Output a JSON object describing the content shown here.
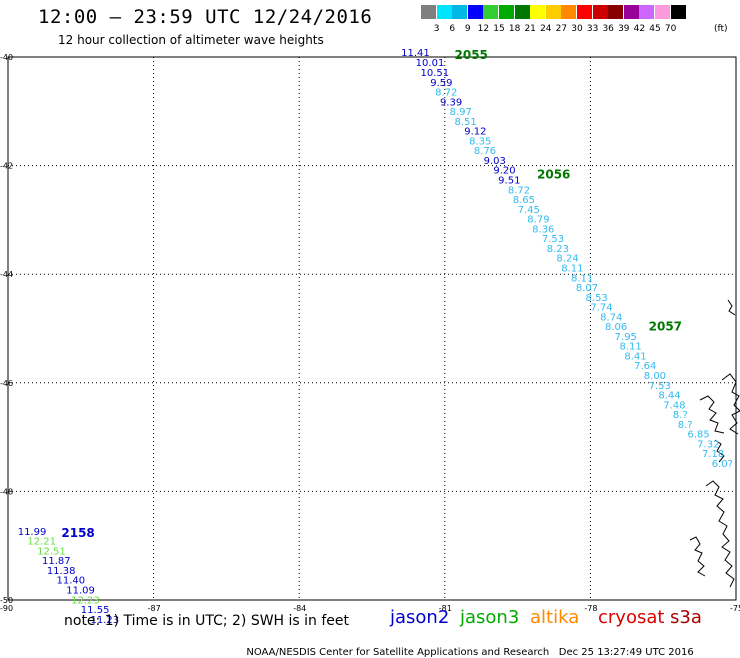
{
  "header": {
    "title": "12:00 – 23:59 UTC 12/24/2016",
    "subtitle": "12 hour collection of altimeter wave heights"
  },
  "colorbar": {
    "labels": [
      "3",
      "6",
      "9",
      "12",
      "15",
      "18",
      "21",
      "24",
      "27",
      "30",
      "33",
      "36",
      "39",
      "42",
      "45",
      "70"
    ],
    "colors": [
      "#7f7f7f",
      "#00e5ff",
      "#00b8e6",
      "#0000ff",
      "#33cc33",
      "#00aa00",
      "#007700",
      "#ffff00",
      "#ffcc00",
      "#ff8800",
      "#ff0000",
      "#cc0000",
      "#880000",
      "#990099",
      "#cc66ff",
      "#ff99dd",
      "#000000"
    ],
    "unit": "(ft)"
  },
  "map": {
    "lon_range": [
      -90,
      -75
    ],
    "lat_range": [
      -50,
      -40
    ],
    "x_ticks": [
      "-90",
      "-87",
      "-84",
      "-81",
      "-78",
      "-75"
    ],
    "y_ticks": [
      "-40",
      "-42",
      "-44",
      "-46",
      "-48",
      "-50"
    ],
    "colors": {
      "jason2": "#0000cc",
      "jason3": "#00aa00",
      "altika": "#ff8800",
      "cryosat": "#dd0000",
      "s3a": "#aa0000",
      "light": "#33bbee",
      "pale_green": "#66dd44"
    }
  },
  "passes": [
    {
      "label": "2055",
      "lon": -80.8,
      "lat": -40.0,
      "color": "#007700"
    },
    {
      "label": "2056",
      "lon": -79.1,
      "lat": -42.2,
      "color": "#007700"
    },
    {
      "label": "2057",
      "lon": -76.8,
      "lat": -45.0,
      "color": "#007700"
    },
    {
      "label": "2158",
      "lon": -88.9,
      "lat": -48.8,
      "color": "#0000cc"
    }
  ],
  "tracks": [
    {
      "name": "track-2055-2057",
      "color_default": "#33bbee",
      "points": [
        {
          "v": "11.41",
          "c": "#0000cc",
          "lon": -81.9,
          "lat": -39.98
        },
        {
          "v": "10.01",
          "c": "#0000cc",
          "lon": -81.6,
          "lat": -40.17
        },
        {
          "v": "10.51",
          "c": "#0000cc",
          "lon": -81.5,
          "lat": -40.35
        },
        {
          "v": "9.59",
          "c": "#0000cc",
          "lon": -81.3,
          "lat": -40.53
        },
        {
          "v": "8.72",
          "c": "#33bbee",
          "lon": -81.2,
          "lat": -40.71
        },
        {
          "v": "9.39",
          "c": "#0000cc",
          "lon": -81.1,
          "lat": -40.89
        },
        {
          "v": "8.97",
          "c": "#33bbee",
          "lon": -80.9,
          "lat": -41.07
        },
        {
          "v": "8.51",
          "c": "#33bbee",
          "lon": -80.8,
          "lat": -41.25
        },
        {
          "v": "9.12",
          "c": "#0000cc",
          "lon": -80.6,
          "lat": -41.43
        },
        {
          "v": "8.35",
          "c": "#33bbee",
          "lon": -80.5,
          "lat": -41.61
        },
        {
          "v": "8.76",
          "c": "#33bbee",
          "lon": -80.4,
          "lat": -41.79
        },
        {
          "v": "9.03",
          "c": "#0000cc",
          "lon": -80.2,
          "lat": -41.97
        },
        {
          "v": "9.20",
          "c": "#0000cc",
          "lon": -80.0,
          "lat": -42.15
        },
        {
          "v": "9.51",
          "c": "#0000cc",
          "lon": -79.9,
          "lat": -42.33
        },
        {
          "v": "8.72",
          "c": "#33bbee",
          "lon": -79.7,
          "lat": -42.51
        },
        {
          "v": "8.65",
          "c": "#33bbee",
          "lon": -79.6,
          "lat": -42.69
        },
        {
          "v": "7.45",
          "c": "#33bbee",
          "lon": -79.5,
          "lat": -42.87
        },
        {
          "v": "8.79",
          "c": "#33bbee",
          "lon": -79.3,
          "lat": -43.05
        },
        {
          "v": "8.36",
          "c": "#33bbee",
          "lon": -79.2,
          "lat": -43.23
        },
        {
          "v": "7.53",
          "c": "#33bbee",
          "lon": -79.0,
          "lat": -43.41
        },
        {
          "v": "8.23",
          "c": "#33bbee",
          "lon": -78.9,
          "lat": -43.59
        },
        {
          "v": "8.24",
          "c": "#33bbee",
          "lon": -78.7,
          "lat": -43.77
        },
        {
          "v": "8.11",
          "c": "#33bbee",
          "lon": -78.6,
          "lat": -43.95
        },
        {
          "v": "8.11",
          "c": "#33bbee",
          "lon": -78.4,
          "lat": -44.13
        },
        {
          "v": "8.07",
          "c": "#33bbee",
          "lon": -78.3,
          "lat": -44.31
        },
        {
          "v": "8.53",
          "c": "#33bbee",
          "lon": -78.1,
          "lat": -44.49
        },
        {
          "v": "7.74",
          "c": "#33bbee",
          "lon": -78.0,
          "lat": -44.67
        },
        {
          "v": "8.74",
          "c": "#33bbee",
          "lon": -77.8,
          "lat": -44.85
        },
        {
          "v": "8.06",
          "c": "#33bbee",
          "lon": -77.7,
          "lat": -45.03
        },
        {
          "v": "7.95",
          "c": "#33bbee",
          "lon": -77.5,
          "lat": -45.21
        },
        {
          "v": "8.11",
          "c": "#33bbee",
          "lon": -77.4,
          "lat": -45.39
        },
        {
          "v": "8.41",
          "c": "#33bbee",
          "lon": -77.3,
          "lat": -45.57
        },
        {
          "v": "7.64",
          "c": "#33bbee",
          "lon": -77.1,
          "lat": -45.75
        },
        {
          "v": "8.00",
          "c": "#33bbee",
          "lon": -76.9,
          "lat": -45.93
        },
        {
          "v": "7.53",
          "c": "#33bbee",
          "lon": -76.8,
          "lat": -46.11
        },
        {
          "v": "8.44",
          "c": "#33bbee",
          "lon": -76.6,
          "lat": -46.29
        },
        {
          "v": "7.48",
          "c": "#33bbee",
          "lon": -76.5,
          "lat": -46.47
        },
        {
          "v": "8.?",
          "c": "#33bbee",
          "lon": -76.3,
          "lat": -46.65
        },
        {
          "v": "8.?",
          "c": "#33bbee",
          "lon": -76.2,
          "lat": -46.83
        },
        {
          "v": "6.85",
          "c": "#33bbee",
          "lon": -76.0,
          "lat": -47.01
        },
        {
          "v": "7.32",
          "c": "#33bbee",
          "lon": -75.8,
          "lat": -47.19
        },
        {
          "v": "7.18",
          "c": "#33bbee",
          "lon": -75.7,
          "lat": -47.37
        },
        {
          "v": "6.0?",
          "c": "#33bbee",
          "lon": -75.5,
          "lat": -47.55
        }
      ]
    },
    {
      "name": "track-2158",
      "color_default": "#0000cc",
      "points": [
        {
          "v": "11.99",
          "c": "#0000cc",
          "lon": -89.8,
          "lat": -48.8
        },
        {
          "v": "12.21",
          "c": "#66dd44",
          "lon": -89.6,
          "lat": -48.98
        },
        {
          "v": "12.51",
          "c": "#66dd44",
          "lon": -89.4,
          "lat": -49.16
        },
        {
          "v": "11.87",
          "c": "#0000cc",
          "lon": -89.3,
          "lat": -49.34
        },
        {
          "v": "11.38",
          "c": "#0000cc",
          "lon": -89.2,
          "lat": -49.52
        },
        {
          "v": "11.40",
          "c": "#0000cc",
          "lon": -89.0,
          "lat": -49.7
        },
        {
          "v": "11.09",
          "c": "#0000cc",
          "lon": -88.8,
          "lat": -49.88
        },
        {
          "v": "12.23",
          "c": "#66dd44",
          "lon": -88.7,
          "lat": -50.06
        },
        {
          "v": "11.55",
          "c": "#0000cc",
          "lon": -88.5,
          "lat": -50.24
        },
        {
          "v": "11.23",
          "c": "#0000cc",
          "lon": -88.3,
          "lat": -50.42
        }
      ]
    }
  ],
  "footer": {
    "note": "note: 1) Time is in UTC; 2) SWH is in feet",
    "satellites": [
      {
        "name": "jason2",
        "color": "#0000cc"
      },
      {
        "name": "jason3",
        "color": "#00aa00"
      },
      {
        "name": "altika",
        "color": "#ff8800"
      },
      {
        "name": "cryosat",
        "color": "#dd0000"
      },
      {
        "name": "s3a",
        "color": "#aa0000"
      }
    ],
    "credit": "NOAA/NESDIS Center for Satellite Applications and Research",
    "timestamp": "Dec 25 13:27:49 UTC 2016"
  }
}
